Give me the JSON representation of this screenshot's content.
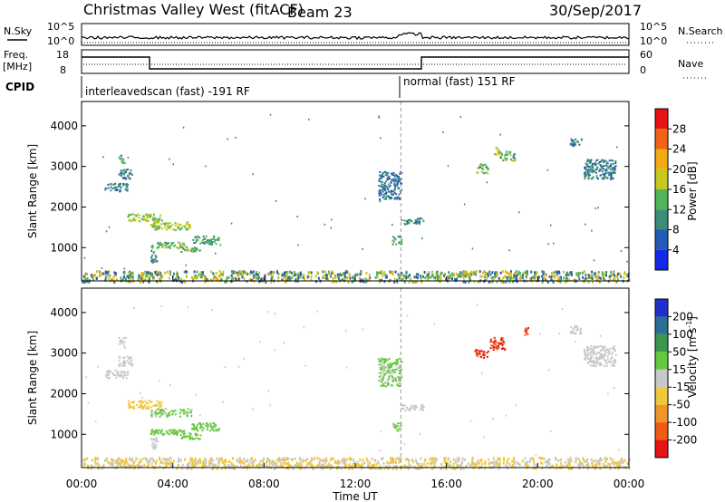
{
  "header": {
    "radar": "Christmas Valley West (fitACF)",
    "beam": "Beam 23",
    "date": "30/Sep/2017"
  },
  "top_panels": {
    "nsky_label": "N.Sky",
    "nsearch_label": "N.Search",
    "freq_label": "Freq.",
    "freq_unit": "[MHz]",
    "nave_label": "Nave",
    "cpid_label": "CPID",
    "left_top_tick": "10^5",
    "left_bottom_tick": "10^0",
    "right_top_tick": "10^5",
    "right_bottom_tick": "10^0",
    "freq_ticks": [
      "18",
      "8"
    ],
    "nave_ticks": [
      "60",
      "0"
    ],
    "cpid_segments": [
      {
        "label": "interleavedscan (fast) -191 RF",
        "start_hour": 0,
        "end_hour": 14
      },
      {
        "label": "normal (fast) 151 RF",
        "start_hour": 14,
        "end_hour": 24
      }
    ]
  },
  "axes": {
    "xlabel": "Time UT",
    "ylabel": "Slant Range [km]",
    "x_ticks": [
      "00:00",
      "04:00",
      "08:00",
      "12:00",
      "16:00",
      "20:00",
      "00:00"
    ],
    "y_ticks": [
      "1000",
      "2000",
      "3000",
      "4000"
    ]
  },
  "colorbars": {
    "power": {
      "label": "Power [dB]",
      "ticks": [
        "4",
        "8",
        "12",
        "16",
        "20",
        "24",
        "28"
      ],
      "colors": [
        "#1428e6",
        "#235ab4",
        "#3c8c78",
        "#50b45a",
        "#c8c81e",
        "#f0aa14",
        "#f06414",
        "#e61414"
      ]
    },
    "velocity": {
      "label_main": "Velocity [m s",
      "label_exp": "-1",
      "label_close": "]",
      "ticks": [
        "200",
        "100",
        "50",
        "15",
        "-15",
        "-50",
        "-100",
        "-200"
      ],
      "colors": [
        "#2030c8",
        "#2d6e96",
        "#3c9650",
        "#64c83c",
        "#c8c8c8",
        "#f0c83c",
        "#f09628",
        "#f05a14",
        "#e61414"
      ]
    }
  },
  "chart_data": [
    {
      "type": "heatmap",
      "title": "Power [dB]",
      "xlabel": "Time UT",
      "ylabel": "Slant Range [km]",
      "x_range_hours": [
        0,
        24
      ],
      "y_range_km": [
        180,
        4600
      ],
      "divider_hour": 14,
      "ground_band": {
        "range_km": [
          180,
          450
        ],
        "value": 14
      },
      "blobs": [
        {
          "t": [
            1.0,
            2.0
          ],
          "r": [
            2400,
            2600
          ],
          "value": 9
        },
        {
          "t": [
            1.6,
            1.9
          ],
          "r": [
            3100,
            3300
          ],
          "value": 14
        },
        {
          "t": [
            1.6,
            2.2
          ],
          "r": [
            2700,
            2950
          ],
          "value": 9
        },
        {
          "t": [
            2.0,
            3.5
          ],
          "r": [
            1650,
            1850
          ],
          "value": 16
        },
        {
          "t": [
            3.0,
            4.8
          ],
          "r": [
            1450,
            1650
          ],
          "value": 16
        },
        {
          "t": [
            4.8,
            6.0
          ],
          "r": [
            1100,
            1300
          ],
          "value": 12
        },
        {
          "t": [
            3.0,
            4.5
          ],
          "r": [
            1000,
            1150
          ],
          "value": 14
        },
        {
          "t": [
            4.3,
            5.2
          ],
          "r": [
            900,
            1050
          ],
          "value": 14
        },
        {
          "t": [
            3.0,
            3.3
          ],
          "r": [
            650,
            950
          ],
          "value": 10
        },
        {
          "t": [
            13.6,
            14.0
          ],
          "r": [
            1100,
            1300
          ],
          "value": 12
        },
        {
          "t": [
            14.0,
            15.0
          ],
          "r": [
            1600,
            1750
          ],
          "value": 10
        },
        {
          "t": [
            13.0,
            14.0
          ],
          "r": [
            2200,
            2900
          ],
          "value": 8
        },
        {
          "t": [
            17.3,
            17.8
          ],
          "r": [
            2850,
            3100
          ],
          "value": 14
        },
        {
          "t": [
            18.0,
            18.3
          ],
          "r": [
            3300,
            3500
          ],
          "value": 18
        },
        {
          "t": [
            18.3,
            19.0
          ],
          "r": [
            3150,
            3400
          ],
          "value": 14
        },
        {
          "t": [
            21.4,
            21.9
          ],
          "r": [
            3500,
            3700
          ],
          "value": 9
        },
        {
          "t": [
            22.0,
            23.4
          ],
          "r": [
            2700,
            3200
          ],
          "value": 9
        }
      ]
    },
    {
      "type": "heatmap",
      "title": "Velocity [m s-1]",
      "xlabel": "Time UT",
      "ylabel": "Slant Range [km]",
      "x_range_hours": [
        0,
        24
      ],
      "y_range_km": [
        180,
        4600
      ],
      "divider_hour": 14,
      "ground_band": {
        "range_km": [
          180,
          450
        ],
        "value": -20
      },
      "blobs": [
        {
          "t": [
            1.0,
            2.0
          ],
          "r": [
            2400,
            2600
          ],
          "value": 0
        },
        {
          "t": [
            1.6,
            1.9
          ],
          "r": [
            3150,
            3400
          ],
          "value": 0
        },
        {
          "t": [
            1.6,
            2.2
          ],
          "r": [
            2700,
            2950
          ],
          "value": 0
        },
        {
          "t": [
            2.0,
            3.5
          ],
          "r": [
            1650,
            1850
          ],
          "value": -30
        },
        {
          "t": [
            3.0,
            4.8
          ],
          "r": [
            1450,
            1650
          ],
          "value": 20
        },
        {
          "t": [
            4.8,
            6.0
          ],
          "r": [
            1100,
            1300
          ],
          "value": 25
        },
        {
          "t": [
            3.0,
            4.5
          ],
          "r": [
            1000,
            1150
          ],
          "value": 25
        },
        {
          "t": [
            4.3,
            5.2
          ],
          "r": [
            900,
            1050
          ],
          "value": 25
        },
        {
          "t": [
            3.0,
            3.3
          ],
          "r": [
            650,
            950
          ],
          "value": 0
        },
        {
          "t": [
            13.6,
            14.0
          ],
          "r": [
            1100,
            1300
          ],
          "value": 20
        },
        {
          "t": [
            14.0,
            15.0
          ],
          "r": [
            1600,
            1750
          ],
          "value": 0
        },
        {
          "t": [
            13.0,
            14.0
          ],
          "r": [
            2200,
            2900
          ],
          "value": 20
        },
        {
          "t": [
            17.2,
            17.8
          ],
          "r": [
            2900,
            3100
          ],
          "value": -200
        },
        {
          "t": [
            17.9,
            18.6
          ],
          "r": [
            3100,
            3400
          ],
          "value": -200
        },
        {
          "t": [
            19.4,
            19.6
          ],
          "r": [
            3450,
            3650
          ],
          "value": -200
        },
        {
          "t": [
            21.4,
            21.9
          ],
          "r": [
            3500,
            3700
          ],
          "value": 0
        },
        {
          "t": [
            22.0,
            23.4
          ],
          "r": [
            2700,
            3200
          ],
          "value": 0
        }
      ]
    }
  ]
}
